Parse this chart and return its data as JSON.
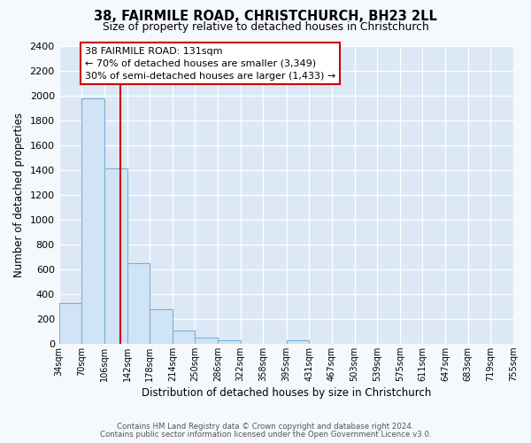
{
  "title": "38, FAIRMILE ROAD, CHRISTCHURCH, BH23 2LL",
  "subtitle": "Size of property relative to detached houses in Christchurch",
  "xlabel": "Distribution of detached houses by size in Christchurch",
  "ylabel": "Number of detached properties",
  "bar_color": "#d0e4f5",
  "bar_edge_color": "#7bafd4",
  "fig_background": "#f5f8fc",
  "axes_background": "#dce8f5",
  "grid_color": "#ffffff",
  "bin_labels": [
    "34sqm",
    "70sqm",
    "106sqm",
    "142sqm",
    "178sqm",
    "214sqm",
    "250sqm",
    "286sqm",
    "322sqm",
    "358sqm",
    "395sqm",
    "431sqm",
    "467sqm",
    "503sqm",
    "539sqm",
    "575sqm",
    "611sqm",
    "647sqm",
    "683sqm",
    "719sqm",
    "755sqm"
  ],
  "bar_values": [
    325,
    1975,
    1410,
    650,
    275,
    105,
    45,
    30,
    0,
    0,
    25,
    0,
    0,
    0,
    0,
    0,
    0,
    0,
    0,
    0
  ],
  "ylim": [
    0,
    2400
  ],
  "yticks": [
    0,
    200,
    400,
    600,
    800,
    1000,
    1200,
    1400,
    1600,
    1800,
    2000,
    2200,
    2400
  ],
  "red_line_x": 131,
  "bin_edges": [
    34,
    70,
    106,
    142,
    178,
    214,
    250,
    286,
    322,
    358,
    395,
    431,
    467,
    503,
    539,
    575,
    611,
    647,
    683,
    719,
    755
  ],
  "annotation_title": "38 FAIRMILE ROAD: 131sqm",
  "annotation_line1": "← 70% of detached houses are smaller (3,349)",
  "annotation_line2": "30% of semi-detached houses are larger (1,433) →",
  "footer_line1": "Contains HM Land Registry data © Crown copyright and database right 2024.",
  "footer_line2": "Contains public sector information licensed under the Open Government Licence v3.0."
}
